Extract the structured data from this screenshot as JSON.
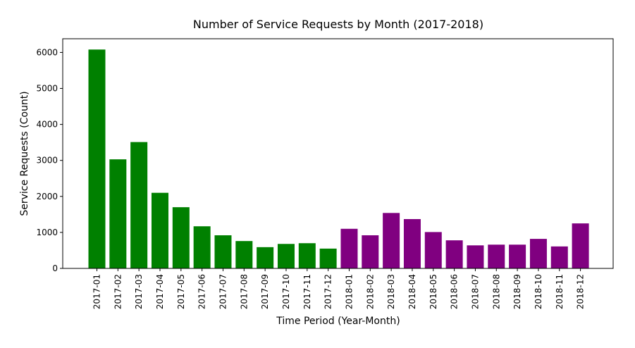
{
  "chart_data": {
    "type": "bar",
    "title": "Number of Service Requests by Month (2017-2018)",
    "xlabel": "Time Period (Year-Month)",
    "ylabel": "Service Requests (Count)",
    "categories": [
      "2017-01",
      "2017-02",
      "2017-03",
      "2017-04",
      "2017-05",
      "2017-06",
      "2017-07",
      "2017-08",
      "2017-09",
      "2017-10",
      "2017-11",
      "2017-12",
      "2018-01",
      "2018-02",
      "2018-03",
      "2018-04",
      "2018-05",
      "2018-06",
      "2018-07",
      "2018-08",
      "2018-09",
      "2018-10",
      "2018-11",
      "2018-12"
    ],
    "values": [
      6080,
      3030,
      3510,
      2100,
      1700,
      1170,
      920,
      760,
      590,
      680,
      700,
      550,
      1100,
      920,
      1540,
      1370,
      1010,
      780,
      640,
      660,
      660,
      820,
      610,
      1250
    ],
    "bar_colors": [
      "#008000",
      "#008000",
      "#008000",
      "#008000",
      "#008000",
      "#008000",
      "#008000",
      "#008000",
      "#008000",
      "#008000",
      "#008000",
      "#008000",
      "#800080",
      "#800080",
      "#800080",
      "#800080",
      "#800080",
      "#800080",
      "#800080",
      "#800080",
      "#800080",
      "#800080",
      "#800080",
      "#800080"
    ],
    "ylim": [
      0,
      6380
    ],
    "yticks": [
      0,
      1000,
      2000,
      3000,
      4000,
      5000,
      6000
    ],
    "grid": false,
    "legend": "none"
  }
}
